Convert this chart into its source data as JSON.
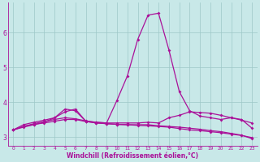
{
  "x": [
    0,
    1,
    2,
    3,
    4,
    5,
    6,
    7,
    8,
    9,
    10,
    11,
    12,
    13,
    14,
    15,
    16,
    17,
    18,
    19,
    20,
    21,
    22,
    23
  ],
  "line1": [
    3.2,
    3.35,
    3.42,
    3.48,
    3.55,
    3.72,
    3.8,
    3.45,
    3.42,
    3.4,
    4.05,
    4.75,
    5.8,
    6.5,
    6.55,
    5.5,
    4.3,
    3.75,
    3.6,
    3.55,
    3.5,
    3.55,
    3.5,
    3.25
  ],
  "line2": [
    3.2,
    3.3,
    3.38,
    3.44,
    3.5,
    3.55,
    3.52,
    3.46,
    3.42,
    3.4,
    3.4,
    3.4,
    3.4,
    3.42,
    3.4,
    3.55,
    3.62,
    3.72,
    3.7,
    3.68,
    3.62,
    3.55,
    3.48,
    3.4
  ],
  "line3": [
    3.2,
    3.28,
    3.35,
    3.42,
    3.55,
    3.8,
    3.75,
    3.45,
    3.4,
    3.38,
    3.36,
    3.35,
    3.35,
    3.35,
    3.32,
    3.3,
    3.28,
    3.25,
    3.22,
    3.18,
    3.15,
    3.1,
    3.05,
    2.95
  ],
  "line4": [
    3.2,
    3.3,
    3.36,
    3.4,
    3.45,
    3.5,
    3.5,
    3.44,
    3.4,
    3.38,
    3.36,
    3.35,
    3.33,
    3.32,
    3.3,
    3.28,
    3.24,
    3.2,
    3.18,
    3.15,
    3.12,
    3.08,
    3.04,
    2.98
  ],
  "line_color": "#aa1199",
  "bg_color": "#c8e8e8",
  "grid_color": "#9ec8c8",
  "xlabel": "Windchill (Refroidissement éolien,°C)",
  "xlim": [
    -0.5,
    23.5
  ],
  "ylim": [
    2.75,
    6.85
  ],
  "yticks": [
    3,
    4,
    5,
    6
  ],
  "xticks": [
    0,
    1,
    2,
    3,
    4,
    5,
    6,
    7,
    8,
    9,
    10,
    11,
    12,
    13,
    14,
    15,
    16,
    17,
    18,
    19,
    20,
    21,
    22,
    23
  ]
}
